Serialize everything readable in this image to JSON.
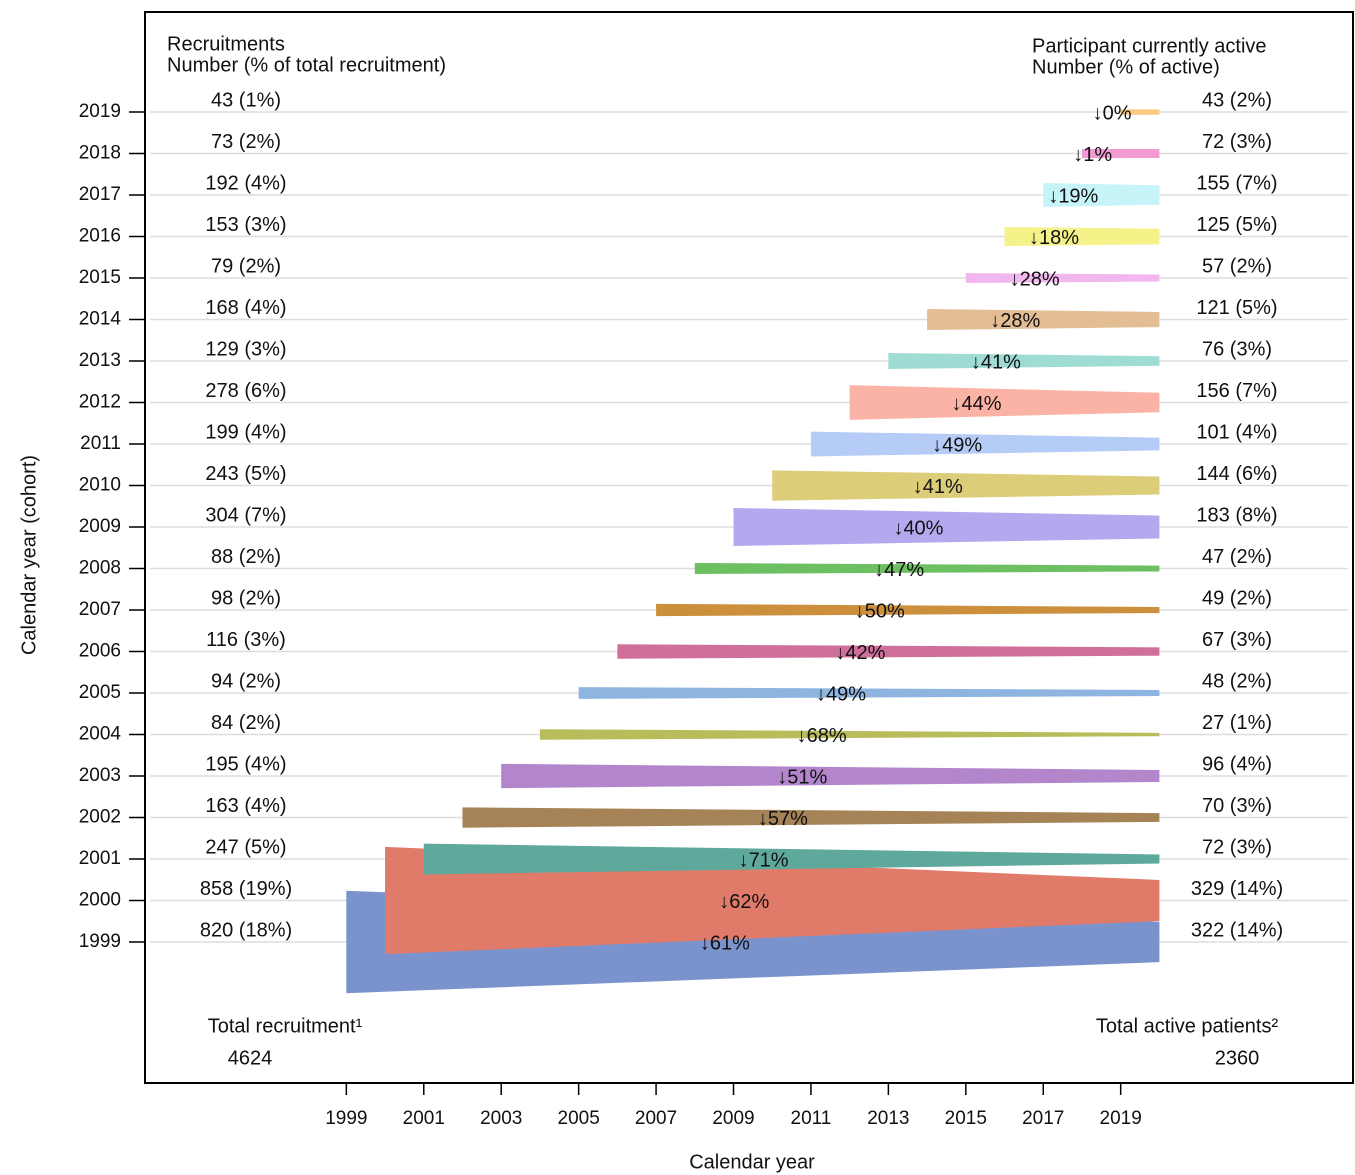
{
  "chart_data": {
    "type": "cohort",
    "xlabel": "Calendar year",
    "ylabel": "Calendar year (cohort)",
    "left_header": [
      "Recruitments",
      "Number (% of total recruitment)"
    ],
    "right_header": [
      "Participant currently active",
      "Number (% of active)"
    ],
    "left_total": {
      "label": "Total recruitment¹",
      "value": 4624
    },
    "right_total": {
      "label": "Total active patients²",
      "value": 2360
    },
    "categories": [
      "1999",
      "2000",
      "2001",
      "2002",
      "2003",
      "2004",
      "2005",
      "2006",
      "2007",
      "2008",
      "2009",
      "2010",
      "2011",
      "2012",
      "2013",
      "2014",
      "2015",
      "2016",
      "2017",
      "2018",
      "2019"
    ],
    "x": [
      1999,
      2000,
      2001,
      2002,
      2003,
      2004,
      2005,
      2006,
      2007,
      2008,
      2009,
      2010,
      2011,
      2012,
      2013,
      2014,
      2015,
      2016,
      2017,
      2018,
      2019
    ],
    "active_year": 2020,
    "colors": [
      "#7b93cc",
      "#e07b6a",
      "#5fa89c",
      "#a68356",
      "#b386cc",
      "#b8bc5a",
      "#8eb5e0",
      "#d0709a",
      "#cc8f3c",
      "#6cc062",
      "#b3a9ee",
      "#dccd78",
      "#b5ccf7",
      "#fbb3a6",
      "#9fdcd4",
      "#e3be94",
      "#f3b7ef",
      "#f5f28a",
      "#c7f4f8",
      "#f29bd2",
      "#fbc97f"
    ],
    "series": [
      {
        "name": "Recruitments",
        "values": [
          820,
          858,
          247,
          163,
          195,
          84,
          94,
          116,
          98,
          88,
          304,
          243,
          199,
          278,
          129,
          168,
          79,
          153,
          192,
          73,
          43
        ],
        "value_labels": [
          "820 (18%)",
          "858 (19%)",
          "247 (5%)",
          "163 (4%)",
          "195 (4%)",
          "84 (2%)",
          "94 (2%)",
          "116 (3%)",
          "98 (2%)",
          "88 (2%)",
          "304 (7%)",
          "243 (5%)",
          "199 (4%)",
          "278 (6%)",
          "129 (3%)",
          "168 (4%)",
          "79 (2%)",
          "153 (3%)",
          "192 (4%)",
          "73 (2%)",
          "43 (1%)"
        ]
      },
      {
        "name": "Participant currently active",
        "values": [
          322,
          329,
          72,
          70,
          96,
          27,
          48,
          67,
          49,
          47,
          183,
          144,
          101,
          156,
          76,
          121,
          57,
          125,
          155,
          72,
          43
        ],
        "value_labels": [
          "322 (14%)",
          "329 (14%)",
          "72 (3%)",
          "70 (3%)",
          "96 (4%)",
          "27 (1%)",
          "48 (2%)",
          "67 (3%)",
          "49 (2%)",
          "47 (2%)",
          "183 (8%)",
          "144 (6%)",
          "101 (4%)",
          "156 (7%)",
          "76 (3%)",
          "121 (5%)",
          "57 (2%)",
          "125 (5%)",
          "155 (7%)",
          "72 (3%)",
          "43 (2%)"
        ]
      },
      {
        "name": "Decline",
        "values": [
          61,
          62,
          71,
          57,
          51,
          68,
          49,
          42,
          50,
          47,
          40,
          41,
          49,
          44,
          41,
          28,
          28,
          18,
          19,
          1,
          0
        ],
        "value_labels": [
          "↓61%",
          "↓62%",
          "↓71%",
          "↓57%",
          "↓51%",
          "↓68%",
          "↓49%",
          "↓42%",
          "↓50%",
          "↓47%",
          "↓40%",
          "↓41%",
          "↓49%",
          "↓44%",
          "↓41%",
          "↓28%",
          "↓28%",
          "↓18%",
          "↓19%",
          "↓1%",
          "↓0%"
        ]
      }
    ],
    "xlim": [
      1993.8,
      2025
    ],
    "xticks": [
      1999,
      2001,
      2003,
      2005,
      2007,
      2009,
      2011,
      2013,
      2015,
      2017,
      2019
    ],
    "grid": true
  }
}
